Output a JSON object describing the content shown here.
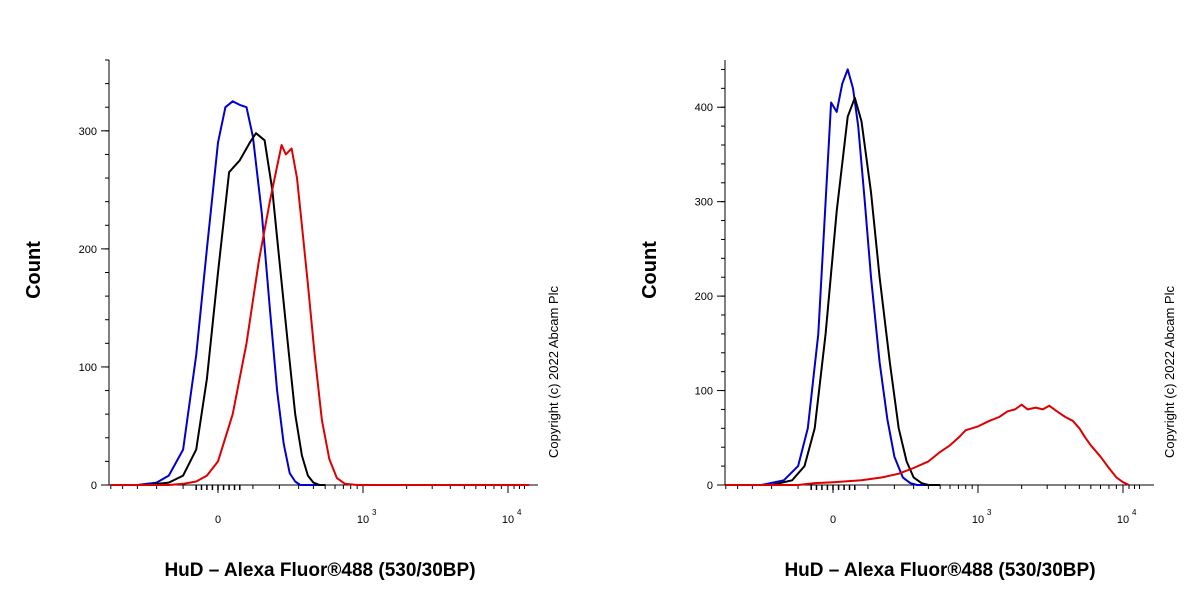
{
  "chart_data": [
    {
      "type": "line",
      "title": "",
      "xlabel": "HuD – Alexa Fluor®488 (530/30BP)",
      "ylabel": "Count",
      "copyright": "Copyright (c) 2022 Abcam Plc",
      "x_scale": "biexponential",
      "x_ticks": [
        {
          "value": 0,
          "base": "0",
          "exp": ""
        },
        {
          "value": 1000,
          "base": "10",
          "exp": "3"
        },
        {
          "value": 10000,
          "base": "10",
          "exp": "4"
        }
      ],
      "xlim": [
        -500,
        14000
      ],
      "ylim": [
        0,
        360
      ],
      "y_ticks": [
        0,
        100,
        200,
        300
      ],
      "grid": false,
      "series": [
        {
          "color": "#0000cc",
          "x": [
            -500,
            -300,
            -200,
            -150,
            -100,
            -60,
            -30,
            0,
            20,
            40,
            60,
            80,
            100,
            130,
            160,
            190,
            220,
            250,
            280,
            310,
            350,
            400,
            500
          ],
          "y": [
            0,
            0,
            2,
            8,
            30,
            110,
            200,
            290,
            320,
            325,
            322,
            320,
            295,
            230,
            150,
            80,
            35,
            10,
            3,
            0,
            0,
            0,
            0
          ]
        },
        {
          "color": "#000000",
          "x": [
            -500,
            -250,
            -150,
            -100,
            -60,
            -30,
            0,
            30,
            60,
            90,
            110,
            140,
            170,
            200,
            240,
            280,
            320,
            360,
            400,
            450,
            500
          ],
          "y": [
            0,
            0,
            2,
            8,
            30,
            90,
            180,
            265,
            275,
            290,
            298,
            292,
            250,
            190,
            120,
            60,
            25,
            8,
            2,
            0,
            0
          ]
        },
        {
          "color": "#dd0000",
          "x": [
            -500,
            -150,
            -100,
            -60,
            -30,
            0,
            40,
            80,
            120,
            160,
            190,
            210,
            230,
            260,
            290,
            320,
            360,
            410,
            470,
            540,
            620,
            720,
            900,
            14000
          ],
          "y": [
            0,
            0,
            1,
            3,
            8,
            20,
            60,
            120,
            190,
            240,
            270,
            288,
            280,
            285,
            260,
            220,
            170,
            110,
            55,
            22,
            6,
            1,
            0,
            0
          ]
        }
      ]
    },
    {
      "type": "line",
      "title": "",
      "xlabel": "HuD – Alexa Fluor®488 (530/30BP)",
      "ylabel": "Count",
      "copyright": "Copyright (c) 2022 Abcam Plc",
      "x_scale": "biexponential",
      "x_ticks": [
        {
          "value": 0,
          "base": "0",
          "exp": ""
        },
        {
          "value": 1000,
          "base": "10",
          "exp": "3"
        },
        {
          "value": 10000,
          "base": "10",
          "exp": "4"
        }
      ],
      "xlim": [
        -500,
        14000
      ],
      "ylim": [
        0,
        450
      ],
      "y_ticks": [
        0,
        100,
        200,
        300,
        400
      ],
      "grid": false,
      "series": [
        {
          "color": "#0000cc",
          "x": [
            -500,
            -250,
            -150,
            -100,
            -70,
            -40,
            -20,
            -5,
            10,
            25,
            40,
            55,
            70,
            90,
            110,
            140,
            170,
            200,
            240,
            280,
            320,
            400
          ],
          "y": [
            0,
            0,
            5,
            20,
            60,
            160,
            300,
            405,
            395,
            425,
            440,
            420,
            380,
            300,
            220,
            130,
            70,
            30,
            8,
            2,
            0,
            0
          ]
        },
        {
          "color": "#000000",
          "x": [
            -500,
            -200,
            -120,
            -80,
            -50,
            -20,
            10,
            40,
            60,
            80,
            110,
            140,
            180,
            220,
            260,
            300,
            350,
            400,
            500
          ],
          "y": [
            0,
            0,
            5,
            20,
            60,
            160,
            290,
            390,
            410,
            385,
            310,
            220,
            130,
            60,
            25,
            8,
            2,
            0,
            0
          ]
        },
        {
          "color": "#dd0000",
          "x": [
            -500,
            -100,
            -50,
            0,
            80,
            150,
            220,
            300,
            400,
            500,
            600,
            700,
            800,
            1000,
            1200,
            1400,
            1600,
            1800,
            2000,
            2200,
            2500,
            2800,
            3100,
            3500,
            4000,
            4500,
            5000,
            5500,
            6000,
            7000,
            8000,
            9000,
            10000,
            11000
          ],
          "y": [
            0,
            0,
            2,
            3,
            5,
            8,
            12,
            18,
            25,
            35,
            42,
            50,
            58,
            62,
            68,
            72,
            78,
            80,
            85,
            80,
            82,
            80,
            84,
            78,
            72,
            68,
            60,
            50,
            42,
            30,
            18,
            8,
            3,
            0
          ]
        }
      ]
    }
  ]
}
